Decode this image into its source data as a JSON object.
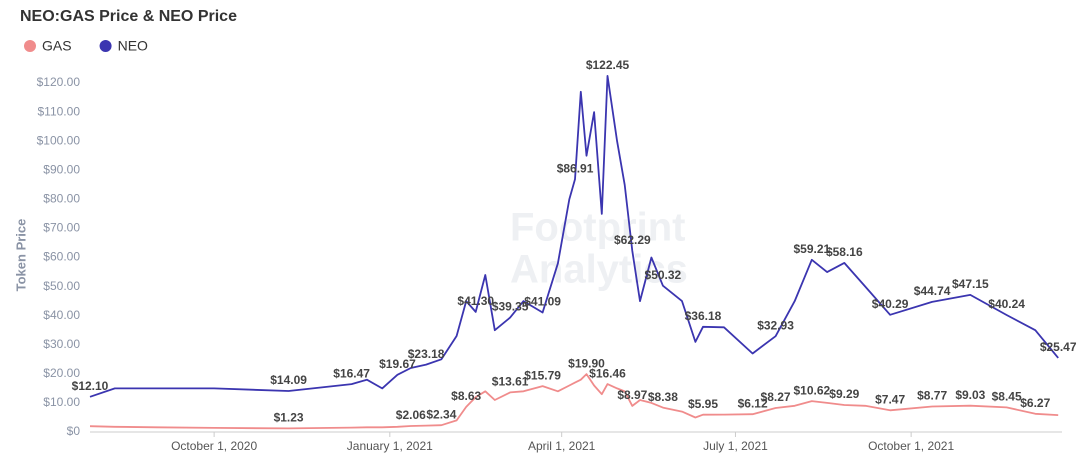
{
  "chart_data": {
    "type": "line",
    "title": "NEO:GAS Price & NEO Price",
    "y_label": "Token Price",
    "watermark": [
      "Footprint",
      "Analytics"
    ],
    "x": [
      "2020-07-28",
      "2020-08-10",
      "2020-09-01",
      "2020-10-01",
      "2020-11-09",
      "2020-12-12",
      "2020-12-20",
      "2020-12-28",
      "2021-01-05",
      "2021-01-12",
      "2021-01-20",
      "2021-01-28",
      "2021-02-05",
      "2021-02-10",
      "2021-02-15",
      "2021-02-20",
      "2021-02-25",
      "2021-03-05",
      "2021-03-12",
      "2021-03-22",
      "2021-03-30",
      "2021-04-05",
      "2021-04-08",
      "2021-04-11",
      "2021-04-14",
      "2021-04-18",
      "2021-04-22",
      "2021-04-25",
      "2021-04-30",
      "2021-05-04",
      "2021-05-08",
      "2021-05-12",
      "2021-05-18",
      "2021-05-24",
      "2021-06-03",
      "2021-06-10",
      "2021-06-14",
      "2021-06-25",
      "2021-07-10",
      "2021-07-22",
      "2021-08-01",
      "2021-08-10",
      "2021-08-18",
      "2021-08-27",
      "2021-09-07",
      "2021-09-20",
      "2021-10-12",
      "2021-11-01",
      "2021-11-20",
      "2021-12-05",
      "2021-12-17"
    ],
    "xlim": [
      "2020-07-28",
      "2021-12-19"
    ],
    "xticks": [
      {
        "value": "2020-10-01",
        "label": "October 1, 2020"
      },
      {
        "value": "2021-01-01",
        "label": "January 1, 2021"
      },
      {
        "value": "2021-04-01",
        "label": "April 1, 2021"
      },
      {
        "value": "2021-07-01",
        "label": "July 1, 2021"
      },
      {
        "value": "2021-10-01",
        "label": "October 1, 2021"
      }
    ],
    "ylim": [
      0,
      125
    ],
    "yticks": [
      {
        "value": 0,
        "label": "$0"
      },
      {
        "value": 10,
        "label": "$10.00"
      },
      {
        "value": 20,
        "label": "$20.00"
      },
      {
        "value": 30,
        "label": "$30.00"
      },
      {
        "value": 40,
        "label": "$40.00"
      },
      {
        "value": 50,
        "label": "$50.00"
      },
      {
        "value": 60,
        "label": "$60.00"
      },
      {
        "value": 70,
        "label": "$70.00"
      },
      {
        "value": 80,
        "label": "$80.00"
      },
      {
        "value": 90,
        "label": "$90.00"
      },
      {
        "value": 100,
        "label": "$100.00"
      },
      {
        "value": 110,
        "label": "$110.00"
      },
      {
        "value": 120,
        "label": "$120.00"
      }
    ],
    "grid": false,
    "series": [
      {
        "name": "GAS",
        "color": "#f08c8c",
        "values": [
          2.0,
          1.8,
          1.6,
          1.4,
          1.23,
          1.5,
          1.6,
          1.6,
          1.8,
          2.06,
          2.2,
          2.34,
          4,
          8.63,
          12,
          14,
          11,
          13.61,
          14,
          15.79,
          14,
          16,
          17,
          18,
          19.9,
          16,
          13,
          16.46,
          15,
          14,
          8.97,
          11,
          10,
          8.38,
          7,
          5,
          5.95,
          6,
          6.12,
          8.27,
          9,
          10.62,
          10,
          9.29,
          9,
          7.47,
          8.77,
          9.03,
          8.45,
          6.27,
          5.8
        ],
        "value_labels": [
          null,
          null,
          null,
          null,
          "$1.23",
          null,
          null,
          null,
          null,
          "$2.06",
          null,
          "$2.34",
          null,
          "$8.63",
          null,
          null,
          null,
          "$13.61",
          null,
          "$15.79",
          null,
          null,
          null,
          null,
          "$19.90",
          null,
          null,
          "$16.46",
          null,
          null,
          "$8.97",
          null,
          null,
          "$8.38",
          null,
          null,
          "$5.95",
          null,
          "$6.12",
          "$8.27",
          null,
          "$10.62",
          null,
          "$9.29",
          null,
          "$7.47",
          "$8.77",
          "$9.03",
          "$8.45",
          "$6.27",
          null
        ]
      },
      {
        "name": "NEO",
        "color": "#3b35b0",
        "values": [
          12.1,
          15,
          15,
          15,
          14.09,
          16.47,
          18,
          15,
          19.67,
          22,
          23.18,
          25,
          33,
          45,
          41.3,
          54,
          35,
          39.35,
          45,
          41.09,
          58,
          80,
          86.91,
          117,
          95,
          110,
          75,
          122.45,
          100,
          85,
          62.29,
          45,
          60,
          50.32,
          45,
          31,
          36.18,
          36,
          27,
          32.93,
          45,
          59.21,
          55,
          58.16,
          50,
          40.29,
          44.74,
          47.15,
          40.24,
          35,
          25.47
        ],
        "value_labels": [
          "$12.10",
          null,
          null,
          null,
          "$14.09",
          "$16.47",
          null,
          null,
          "$19.67",
          null,
          "$23.18",
          null,
          null,
          null,
          "$41.30",
          null,
          null,
          "$39.35",
          null,
          "$41.09",
          null,
          null,
          "$86.91",
          null,
          null,
          null,
          null,
          "$122.45",
          null,
          null,
          "$62.29",
          null,
          null,
          "$50.32",
          null,
          null,
          "$36.18",
          null,
          null,
          "$32.93",
          null,
          "$59.21",
          null,
          "$58.16",
          null,
          "$40.29",
          "$44.74",
          "$47.15",
          "$40.24",
          null,
          "$25.47"
        ]
      }
    ]
  }
}
